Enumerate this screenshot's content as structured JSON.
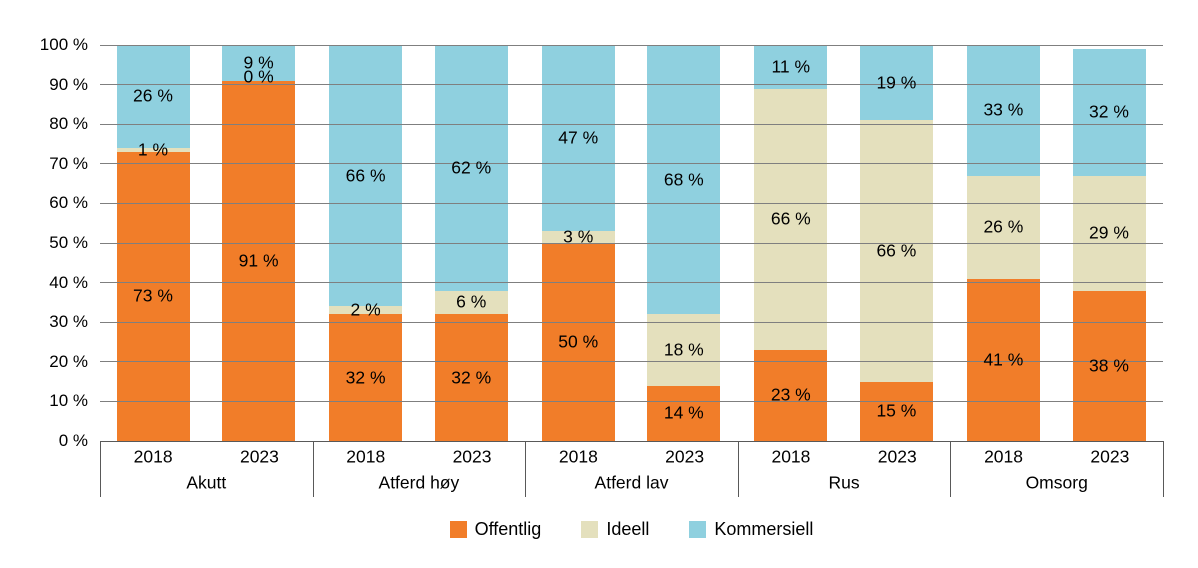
{
  "chart_data": {
    "type": "bar",
    "stacked": true,
    "orientation": "vertical",
    "grid": true,
    "value_suffix": " %",
    "y_axis": {
      "min": 0,
      "max": 100,
      "step": 10,
      "tick_labels": [
        "0 %",
        "10 %",
        "20 %",
        "30 %",
        "40 %",
        "50 %",
        "60 %",
        "70 %",
        "80 %",
        "90 %",
        "100 %"
      ]
    },
    "series": [
      {
        "name": "Offentlig",
        "color": "#F17D29"
      },
      {
        "name": "Ideell",
        "color": "#E4E0BD"
      },
      {
        "name": "Kommersiell",
        "color": "#8FD0DF"
      }
    ],
    "groups": [
      {
        "label": "Akutt",
        "bars": [
          {
            "x_label": "2018",
            "values": [
              73,
              1,
              26
            ]
          },
          {
            "x_label": "2023",
            "values": [
              91,
              0,
              9
            ]
          }
        ]
      },
      {
        "label": "Atferd høy",
        "bars": [
          {
            "x_label": "2018",
            "values": [
              32,
              2,
              66
            ]
          },
          {
            "x_label": "2023",
            "values": [
              32,
              6,
              62
            ]
          }
        ]
      },
      {
        "label": "Atferd lav",
        "bars": [
          {
            "x_label": "2018",
            "values": [
              50,
              3,
              47
            ]
          },
          {
            "x_label": "2023",
            "values": [
              14,
              18,
              68
            ]
          }
        ]
      },
      {
        "label": "Rus",
        "bars": [
          {
            "x_label": "2018",
            "values": [
              23,
              66,
              11
            ]
          },
          {
            "x_label": "2023",
            "values": [
              15,
              66,
              19
            ]
          }
        ]
      },
      {
        "label": "Omsorg",
        "bars": [
          {
            "x_label": "2018",
            "values": [
              41,
              26,
              33
            ]
          },
          {
            "x_label": "2023",
            "values": [
              38,
              29,
              32
            ]
          }
        ]
      }
    ],
    "legend": {
      "position": "bottom",
      "items": [
        "Offentlig",
        "Ideell",
        "Kommersiell"
      ]
    }
  },
  "colors": {
    "gridline": "#7F7F7F",
    "axis": "#595959",
    "text": "#000000",
    "background": "#FFFFFF"
  }
}
